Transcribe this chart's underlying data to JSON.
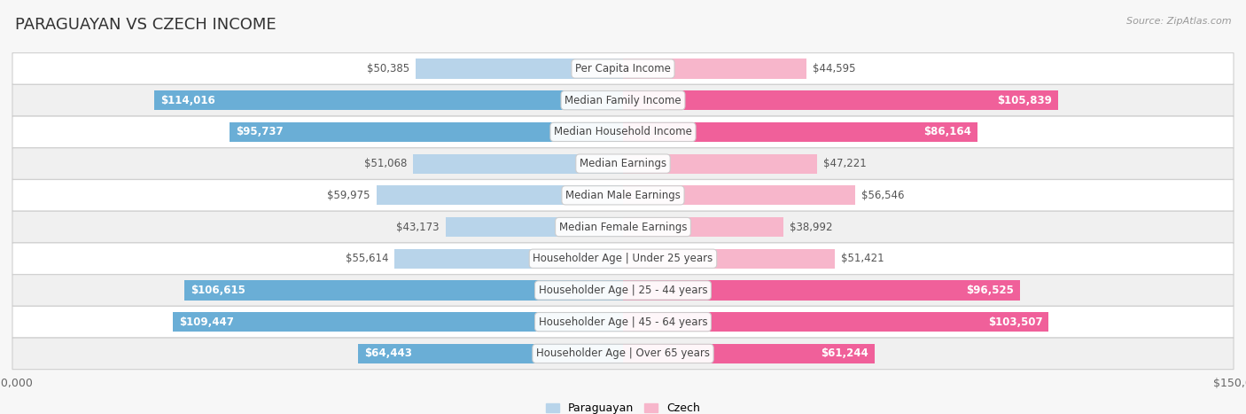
{
  "title": "PARAGUAYAN VS CZECH INCOME",
  "source": "Source: ZipAtlas.com",
  "categories": [
    "Per Capita Income",
    "Median Family Income",
    "Median Household Income",
    "Median Earnings",
    "Median Male Earnings",
    "Median Female Earnings",
    "Householder Age | Under 25 years",
    "Householder Age | 25 - 44 years",
    "Householder Age | 45 - 64 years",
    "Householder Age | Over 65 years"
  ],
  "paraguayan_values": [
    50385,
    114016,
    95737,
    51068,
    59975,
    43173,
    55614,
    106615,
    109447,
    64443
  ],
  "czech_values": [
    44595,
    105839,
    86164,
    47221,
    56546,
    38992,
    51421,
    96525,
    103507,
    61244
  ],
  "paraguayan_labels": [
    "$50,385",
    "$114,016",
    "$95,737",
    "$51,068",
    "$59,975",
    "$43,173",
    "$55,614",
    "$106,615",
    "$109,447",
    "$64,443"
  ],
  "czech_labels": [
    "$44,595",
    "$105,839",
    "$86,164",
    "$47,221",
    "$56,546",
    "$38,992",
    "$51,421",
    "$96,525",
    "$103,507",
    "$61,244"
  ],
  "paraguayan_color_light": "#b8d4ea",
  "paraguayan_color_dark": "#6aaed6",
  "czech_color_light": "#f7b6cb",
  "czech_color_dark": "#f0609a",
  "inside_label_threshold": 60000,
  "max_value": 150000,
  "bar_height": 0.62,
  "background_color": "#f7f7f7",
  "row_colors": [
    "#ffffff",
    "#f0f0f0"
  ],
  "title_fontsize": 13,
  "label_fontsize": 8.5,
  "axis_fontsize": 9,
  "legend_fontsize": 9,
  "source_fontsize": 8
}
